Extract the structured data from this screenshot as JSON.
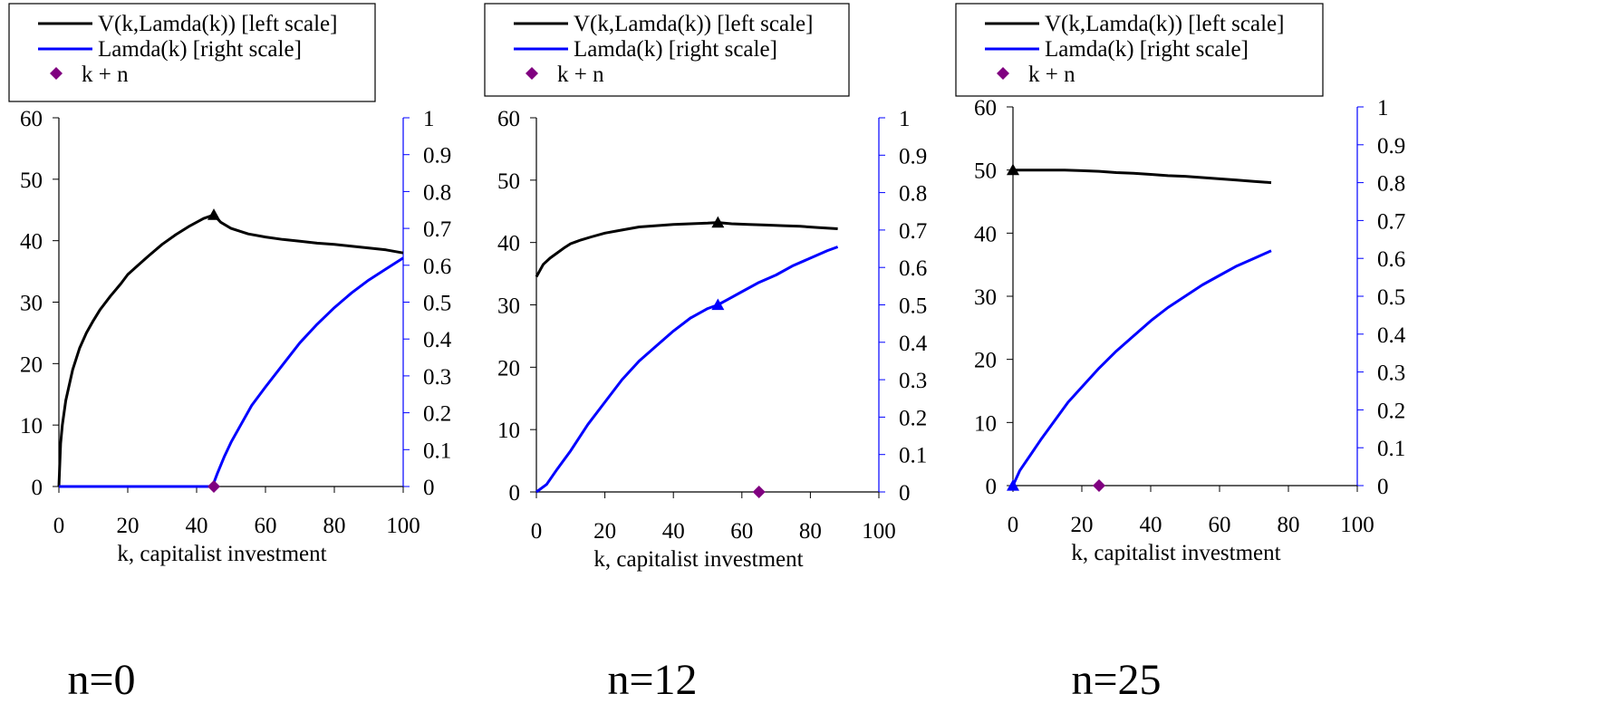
{
  "colors": {
    "value_line": "#000000",
    "lambda_line": "#0000ff",
    "right_axis": "#0000ff",
    "marker_k_plus_n": "#800080",
    "axes": "#000000"
  },
  "legend": {
    "value_label": "V(k,Lamda(k))  [left scale]",
    "lambda_label": "Lamda(k)  [right scale]",
    "marker_label": "k + n"
  },
  "chart_data": [
    {
      "type": "line",
      "panel_label": "n=0",
      "xlabel": "k, capitalist investment",
      "xlim": [
        0,
        100
      ],
      "x_ticks": [
        0,
        20,
        40,
        60,
        80,
        100
      ],
      "y_left_lim": [
        0,
        60
      ],
      "y_left_ticks": [
        0,
        10,
        20,
        30,
        40,
        50,
        60
      ],
      "y_right_lim": [
        0,
        1
      ],
      "y_right_ticks": [
        "0",
        "0.1",
        "0.2",
        "0.3",
        "0.4",
        "0.5",
        "0.6",
        "0.7",
        "0.8",
        "0.9",
        "1"
      ],
      "grid": false,
      "legend_position": "top-left",
      "series": [
        {
          "axis": "left",
          "color": "#000000",
          "x": [
            0,
            0.5,
            1,
            2,
            4,
            6,
            8,
            10,
            12,
            15,
            18,
            20,
            23,
            26,
            30,
            34,
            38,
            42,
            44,
            45,
            47,
            50,
            55,
            60,
            65,
            70,
            75,
            80,
            85,
            90,
            95,
            100
          ],
          "y": [
            0,
            7,
            10,
            14,
            19,
            22.5,
            25,
            27,
            28.8,
            31,
            33,
            34.5,
            36,
            37.5,
            39.4,
            41,
            42.4,
            43.6,
            44,
            44.2,
            43,
            42,
            41.1,
            40.6,
            40.2,
            39.9,
            39.6,
            39.4,
            39.1,
            38.8,
            38.5,
            38
          ]
        },
        {
          "axis": "right",
          "color": "#0000ff",
          "x": [
            0,
            10,
            20,
            30,
            40,
            44,
            45,
            46,
            48,
            50,
            53,
            56,
            60,
            65,
            70,
            75,
            80,
            85,
            90,
            95,
            100
          ],
          "y": [
            0,
            0,
            0,
            0,
            0,
            0,
            0.01,
            0.035,
            0.08,
            0.12,
            0.17,
            0.22,
            0.27,
            0.33,
            0.39,
            0.44,
            0.485,
            0.525,
            0.56,
            0.59,
            0.62
          ]
        }
      ],
      "optimum_markers": [
        {
          "axis": "left",
          "x": 45,
          "y": 44.2,
          "color": "#000000"
        }
      ],
      "k_plus_n_marker": {
        "x": 45,
        "y": 0
      }
    },
    {
      "type": "line",
      "panel_label": "n=12",
      "xlabel": "k, capitalist investment",
      "xlim": [
        0,
        100
      ],
      "x_ticks": [
        0,
        20,
        40,
        60,
        80,
        100
      ],
      "y_left_lim": [
        0,
        60
      ],
      "y_left_ticks": [
        0,
        10,
        20,
        30,
        40,
        50,
        60
      ],
      "y_right_lim": [
        0,
        1
      ],
      "y_right_ticks": [
        "0",
        "0.1",
        "0.2",
        "0.3",
        "0.4",
        "0.5",
        "0.6",
        "0.7",
        "0.8",
        "0.9",
        "1"
      ],
      "grid": false,
      "legend_position": "top-center",
      "series": [
        {
          "axis": "left",
          "color": "#000000",
          "x": [
            0,
            2,
            4,
            6,
            8,
            10,
            13,
            16,
            20,
            25,
            30,
            35,
            40,
            45,
            50,
            53,
            57,
            62,
            67,
            72,
            77,
            82,
            88
          ],
          "y": [
            34.5,
            36.5,
            37.5,
            38.3,
            39.1,
            39.8,
            40.4,
            40.9,
            41.5,
            42,
            42.5,
            42.7,
            42.9,
            43,
            43.1,
            43.2,
            43,
            42.9,
            42.8,
            42.7,
            42.6,
            42.4,
            42.2
          ]
        },
        {
          "axis": "right",
          "color": "#0000ff",
          "x": [
            0,
            3,
            6,
            10,
            15,
            20,
            25,
            30,
            35,
            40,
            45,
            50,
            53,
            56,
            60,
            65,
            70,
            75,
            80,
            85,
            88
          ],
          "y": [
            0,
            0.02,
            0.06,
            0.11,
            0.18,
            0.24,
            0.3,
            0.35,
            0.39,
            0.43,
            0.465,
            0.49,
            0.5,
            0.515,
            0.535,
            0.56,
            0.58,
            0.605,
            0.625,
            0.645,
            0.655
          ]
        }
      ],
      "optimum_markers": [
        {
          "axis": "left",
          "x": 53,
          "y": 43.2,
          "color": "#000000"
        },
        {
          "axis": "right",
          "x": 53,
          "y": 0.5,
          "color": "#0000ff"
        }
      ],
      "k_plus_n_marker": {
        "x": 65,
        "y": 0
      }
    },
    {
      "type": "line",
      "panel_label": "n=25",
      "xlabel": "k, capitalist investment",
      "xlim": [
        0,
        100
      ],
      "x_ticks": [
        0,
        20,
        40,
        60,
        80,
        100
      ],
      "y_left_lim": [
        0,
        60
      ],
      "y_left_ticks": [
        0,
        10,
        20,
        30,
        40,
        50,
        60
      ],
      "y_right_lim": [
        0,
        1
      ],
      "y_right_ticks": [
        "0",
        "0.1",
        "0.2",
        "0.3",
        "0.4",
        "0.5",
        "0.6",
        "0.7",
        "0.8",
        "0.9",
        "1"
      ],
      "grid": false,
      "legend_position": "top-center",
      "series": [
        {
          "axis": "left",
          "color": "#000000",
          "x": [
            0,
            5,
            10,
            15,
            20,
            25,
            30,
            35,
            40,
            45,
            50,
            55,
            60,
            65,
            70,
            75
          ],
          "y": [
            50,
            50,
            50,
            50,
            49.9,
            49.8,
            49.6,
            49.5,
            49.3,
            49.1,
            49,
            48.8,
            48.6,
            48.4,
            48.2,
            48
          ]
        },
        {
          "axis": "right",
          "color": "#0000ff",
          "x": [
            0,
            2,
            5,
            8,
            12,
            16,
            20,
            25,
            30,
            35,
            40,
            45,
            50,
            55,
            60,
            65,
            70,
            75
          ],
          "y": [
            0,
            0.04,
            0.08,
            0.12,
            0.17,
            0.22,
            0.26,
            0.31,
            0.355,
            0.395,
            0.435,
            0.47,
            0.5,
            0.53,
            0.555,
            0.58,
            0.6,
            0.62
          ]
        }
      ],
      "optimum_markers": [
        {
          "axis": "left",
          "x": 0,
          "y": 50,
          "color": "#000000"
        },
        {
          "axis": "right",
          "x": 0,
          "y": 0,
          "color": "#0000ff"
        }
      ],
      "k_plus_n_marker": {
        "x": 25,
        "y": 0
      }
    }
  ]
}
